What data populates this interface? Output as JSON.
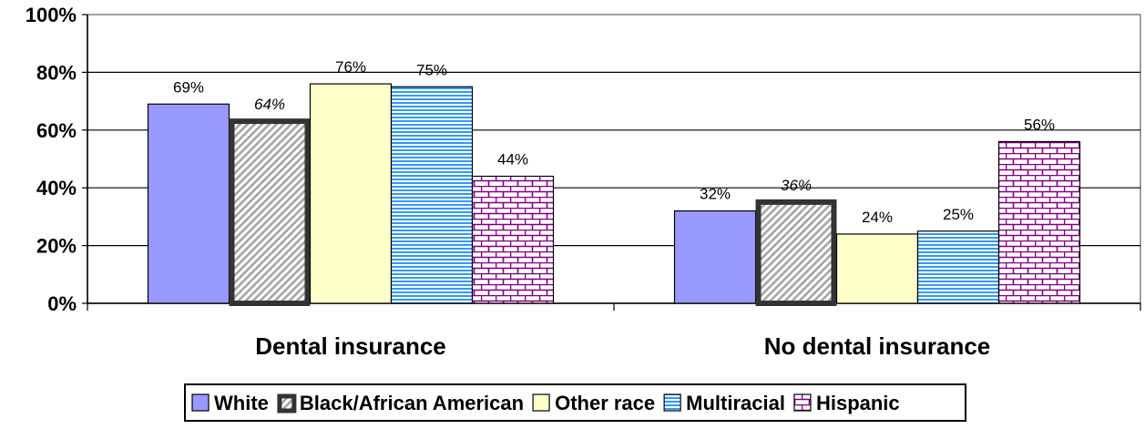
{
  "chart_data": {
    "type": "bar",
    "categories": [
      "Dental insurance",
      "No dental insurance"
    ],
    "series": [
      {
        "name": "White",
        "values": [
          69,
          32
        ],
        "color": "#9999ff",
        "pattern": "solid"
      },
      {
        "name": "Black/African American",
        "values": [
          64,
          36
        ],
        "color": "#d9d9d9",
        "pattern": "diagonal-stripes",
        "border_color": "#333333",
        "italic_labels": true
      },
      {
        "name": "Other race",
        "values": [
          76,
          24
        ],
        "color": "#ffffcc",
        "pattern": "solid"
      },
      {
        "name": "Multiracial",
        "values": [
          75,
          25
        ],
        "color": "#3399ff",
        "pattern": "horizontal-stripes"
      },
      {
        "name": "Hispanic",
        "values": [
          44,
          56
        ],
        "color": "#800080",
        "pattern": "brick"
      }
    ],
    "y_ticks": [
      "0%",
      "20%",
      "40%",
      "60%",
      "80%",
      "100%"
    ],
    "ylim": [
      0,
      100
    ],
    "data_label_suffix": "%",
    "grid": true,
    "legend_position": "bottom"
  }
}
